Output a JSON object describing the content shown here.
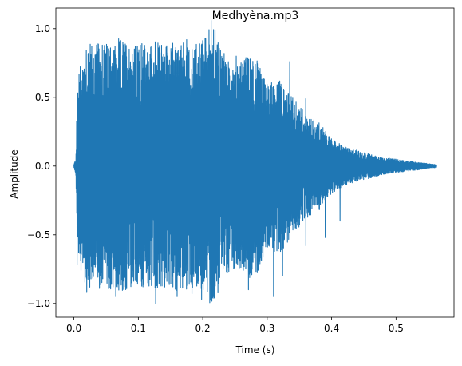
{
  "chart_data": {
    "type": "line",
    "title": "Medhyèna.mp3",
    "xlabel": "Time (s)",
    "ylabel": "Amplitude",
    "xlim": [
      -0.028,
      0.59
    ],
    "ylim": [
      -1.1,
      1.15
    ],
    "xticks": [
      0.0,
      0.1,
      0.2,
      0.3,
      0.4,
      0.5
    ],
    "xtick_labels": [
      "0.0",
      "0.1",
      "0.2",
      "0.3",
      "0.4",
      "0.5"
    ],
    "yticks": [
      -1.0,
      -0.5,
      0.0,
      0.5,
      1.0
    ],
    "ytick_labels": [
      "−1.0",
      "−0.5",
      "0.0",
      "0.5",
      "1.0"
    ],
    "grid": false,
    "legend": "none",
    "series": [
      {
        "color": "#1f77b4",
        "duration": 0.563,
        "envelope": {
          "t": [
            0.0,
            0.003,
            0.005,
            0.007,
            0.01,
            0.015,
            0.02,
            0.03,
            0.05,
            0.08,
            0.1,
            0.12,
            0.15,
            0.18,
            0.2,
            0.215,
            0.23,
            0.25,
            0.28,
            0.3,
            0.32,
            0.34,
            0.36,
            0.38,
            0.4,
            0.42,
            0.45,
            0.48,
            0.5,
            0.53,
            0.563
          ],
          "amp": [
            0.01,
            0.06,
            0.5,
            0.72,
            0.75,
            0.8,
            0.95,
            0.88,
            0.9,
            0.92,
            0.88,
            0.9,
            0.9,
            0.88,
            0.92,
            1.05,
            0.82,
            0.75,
            0.82,
            0.6,
            0.62,
            0.5,
            0.38,
            0.32,
            0.2,
            0.14,
            0.1,
            0.06,
            0.05,
            0.03,
            0.01
          ]
        },
        "peaks": [
          {
            "t": 0.213,
            "v": 1.06
          },
          {
            "t": 0.127,
            "v": -1.0
          },
          {
            "t": 0.044,
            "v": 0.88
          },
          {
            "t": 0.057,
            "v": 0.86
          },
          {
            "t": 0.103,
            "v": 0.88
          },
          {
            "t": 0.157,
            "v": 0.84
          },
          {
            "t": 0.175,
            "v": 0.92
          },
          {
            "t": 0.233,
            "v": 0.82
          },
          {
            "t": 0.252,
            "v": 0.8
          },
          {
            "t": 0.266,
            "v": 0.75
          },
          {
            "t": 0.29,
            "v": 0.65
          },
          {
            "t": 0.335,
            "v": 0.76
          },
          {
            "t": 0.02,
            "v": -0.92
          },
          {
            "t": 0.065,
            "v": -0.95
          },
          {
            "t": 0.16,
            "v": -0.95
          },
          {
            "t": 0.183,
            "v": -0.93
          },
          {
            "t": 0.198,
            "v": -0.97
          },
          {
            "t": 0.271,
            "v": -0.9
          },
          {
            "t": 0.31,
            "v": -0.95
          },
          {
            "t": 0.324,
            "v": -0.8
          },
          {
            "t": 0.36,
            "v": -0.58
          },
          {
            "t": 0.39,
            "v": -0.52
          },
          {
            "t": 0.413,
            "v": -0.4
          },
          {
            "t": 0.36,
            "v": 0.49
          },
          {
            "t": 0.005,
            "v": -0.72
          }
        ]
      }
    ]
  }
}
